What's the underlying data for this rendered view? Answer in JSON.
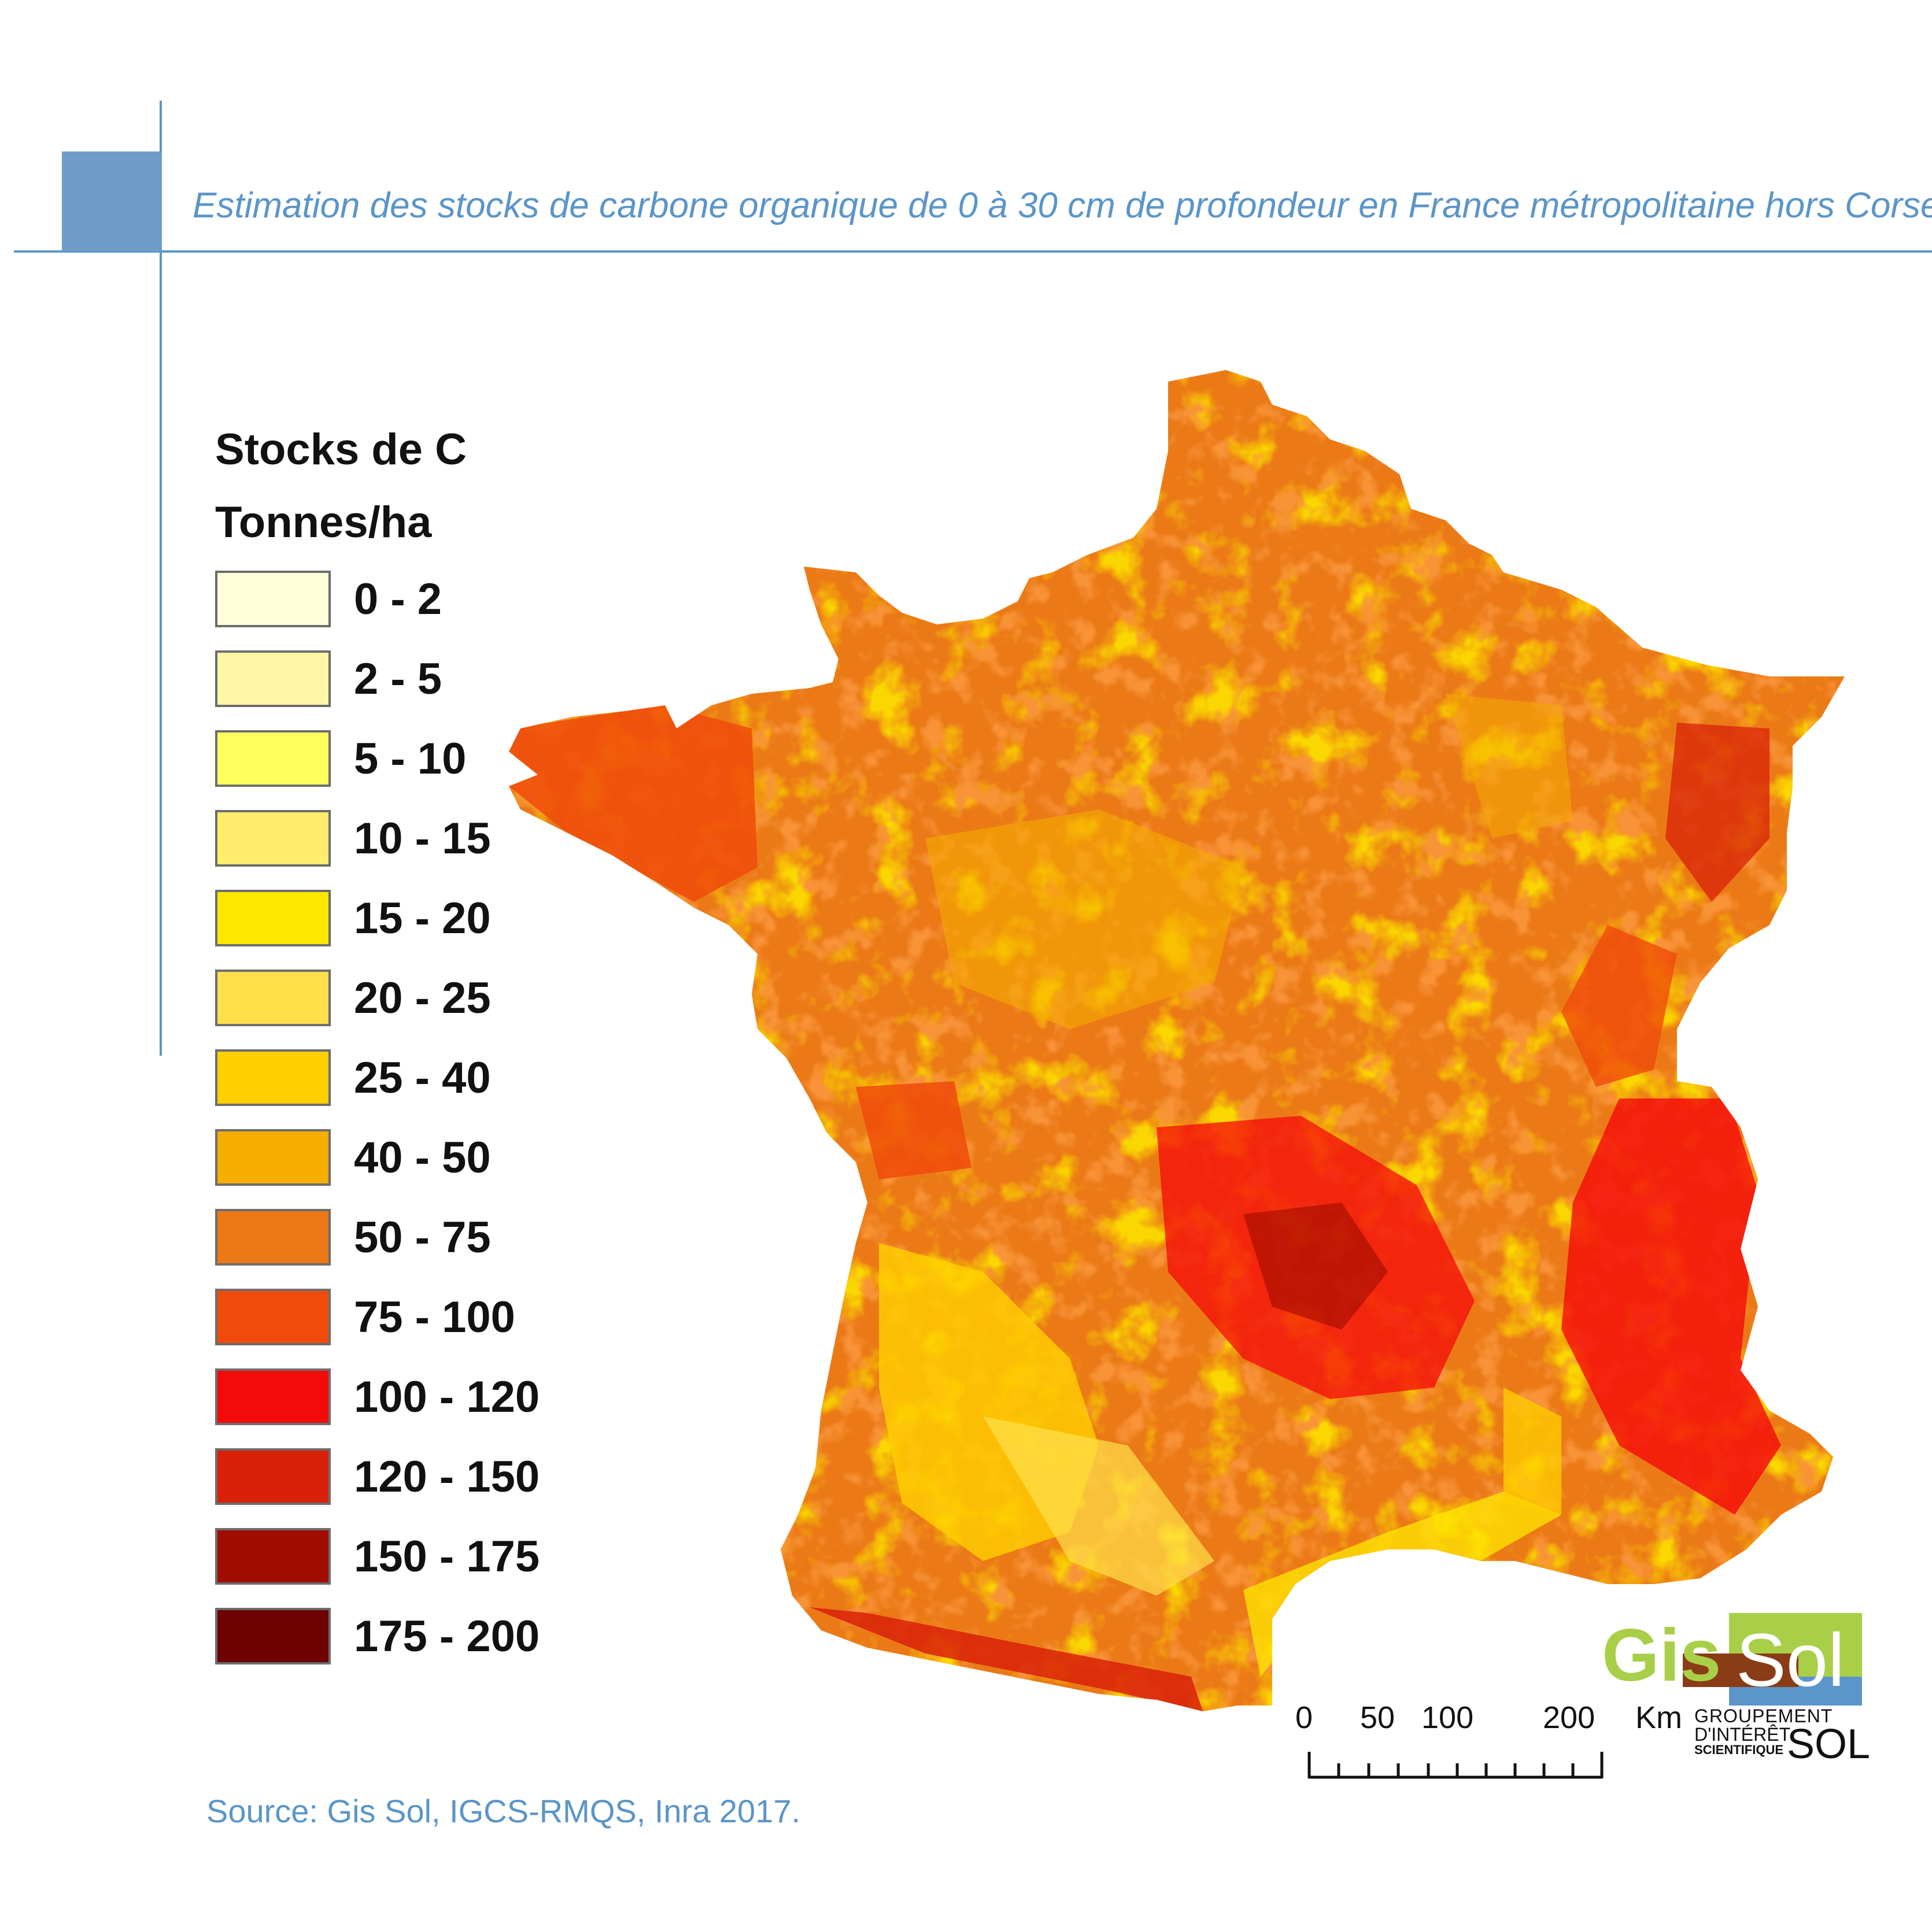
{
  "title": "Estimation des stocks de carbone organique de 0 à 30 cm de profondeur en France métropolitaine hors Corse",
  "legend": {
    "title": "Stocks de C",
    "subtitle": "Tonnes/ha",
    "items": [
      {
        "label": "0 - 2",
        "color": "#ffffd9"
      },
      {
        "label": "2 - 5",
        "color": "#fff7a6"
      },
      {
        "label": "5 - 10",
        "color": "#ffff5e"
      },
      {
        "label": "10 - 15",
        "color": "#ffed6b"
      },
      {
        "label": "15 - 20",
        "color": "#ffe800"
      },
      {
        "label": "20 - 25",
        "color": "#ffdf4a"
      },
      {
        "label": "25 - 40",
        "color": "#ffcf00"
      },
      {
        "label": "40 - 50",
        "color": "#f5ad00"
      },
      {
        "label": "50 - 75",
        "color": "#eb7a16"
      },
      {
        "label": "75 - 100",
        "color": "#f04b0a"
      },
      {
        "label": "100 - 120",
        "color": "#f50a0a"
      },
      {
        "label": "120 - 150",
        "color": "#d92109"
      },
      {
        "label": "150 - 175",
        "color": "#a00c00"
      },
      {
        "label": "175 - 200",
        "color": "#6e0000"
      }
    ]
  },
  "scale_bar": {
    "labels": [
      "0",
      "50",
      "100",
      "200"
    ],
    "unit": "Km"
  },
  "logo": {
    "gis": "Gis",
    "sol": "Sol",
    "line1": "GROUPEMENT",
    "line2": "D'INTÉRÊT",
    "line3": "SCIENTIFIQUE",
    "sol_small": "SOL"
  },
  "source": "Source: Gis Sol, IGCS-RMQS, Inra 2017.",
  "colors": {
    "accent": "#5b95c9",
    "map_base": "#eb7a16"
  }
}
